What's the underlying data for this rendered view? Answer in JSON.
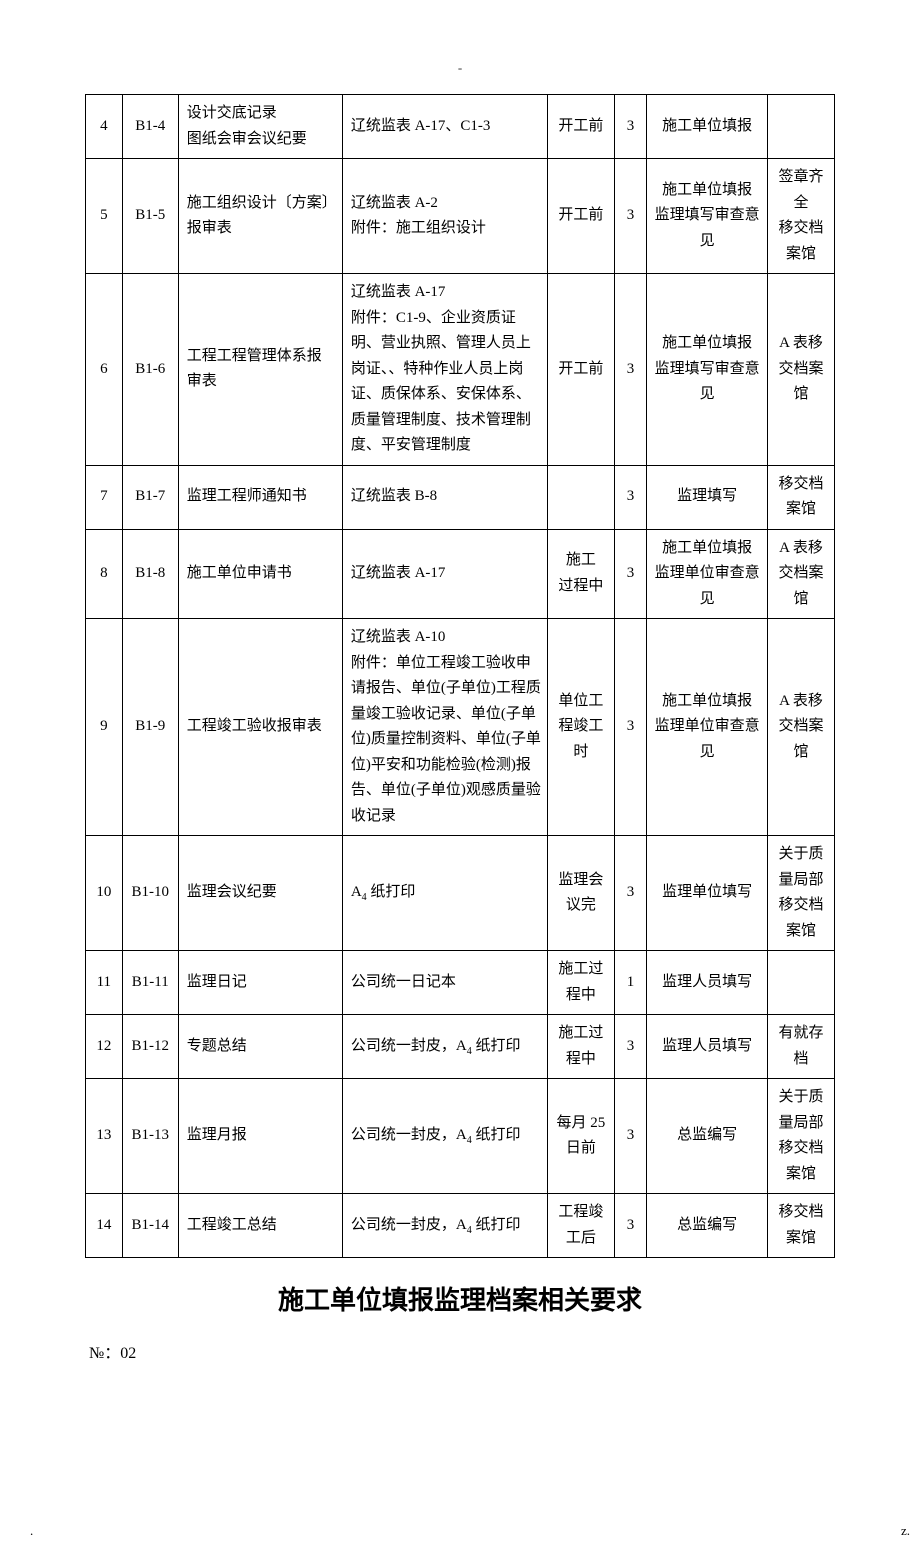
{
  "top_marker": "-",
  "table": {
    "rows": [
      {
        "idx": "4",
        "code": "B1-4",
        "name": "设计交底记录\n图纸会审会议纪要",
        "form": "辽统监表 A-17、C1-3",
        "time": "开工前",
        "count": "3",
        "resp": "施工单位填报",
        "note": ""
      },
      {
        "idx": "5",
        "code": "B1-5",
        "name": "施工组织设计〔方案〕报审表",
        "form": "辽统监表 A-2\n附件：施工组织设计",
        "time": "开工前",
        "count": "3",
        "resp": "施工单位填报\n监理填写审查意见",
        "note": "签章齐全\n移交档案馆"
      },
      {
        "idx": "6",
        "code": "B1-6",
        "name": "工程工程管理体系报审表",
        "form": "辽统监表 A-17\n附件：C1-9、企业资质证明、营业执照、管理人员上岗证、、特种作业人员上岗证、质保体系、安保体系、质量管理制度、技术管理制度、平安管理制度",
        "time": "开工前",
        "count": "3",
        "resp": "施工单位填报\n监理填写审查意见",
        "note": "A 表移交档案馆"
      },
      {
        "idx": "7",
        "code": "B1-7",
        "name": "监理工程师通知书",
        "form": "辽统监表 B-8",
        "time": "",
        "count": "3",
        "resp": "监理填写",
        "note": "移交档案馆"
      },
      {
        "idx": "8",
        "code": "B1-8",
        "name": "施工单位申请书",
        "form": "辽统监表 A-17",
        "time": "施工\n过程中",
        "count": "3",
        "resp": "施工单位填报\n监理单位审查意见",
        "note": "A 表移交档案馆"
      },
      {
        "idx": "9",
        "code": "B1-9",
        "name": "工程竣工验收报审表",
        "form": "辽统监表 A-10\n附件：单位工程竣工验收申请报告、单位(子单位)工程质量竣工验收记录、单位(子单位)质量控制资料、单位(子单位)平安和功能检验(检测)报告、单位(子单位)观感质量验收记录",
        "time": "单位工程竣工时",
        "count": "3",
        "resp": "施工单位填报\n监理单位审查意见",
        "note": "A 表移交档案馆"
      },
      {
        "idx": "10",
        "code": "B1-10",
        "name": "监理会议纪要",
        "form": "A4 纸打印",
        "time": "监理会议完",
        "count": "3",
        "resp": "监理单位填写",
        "note": "关于质量局部移交档案馆"
      },
      {
        "idx": "11",
        "code": "B1-11",
        "name": "监理日记",
        "form": "公司统一日记本",
        "time": "施工过程中",
        "count": "1",
        "resp": "监理人员填写",
        "note": ""
      },
      {
        "idx": "12",
        "code": "B1-12",
        "name": "专题总结",
        "form": "公司统一封皮，A4 纸打印",
        "time": "施工过程中",
        "count": "3",
        "resp": "监理人员填写",
        "note": "有就存档"
      },
      {
        "idx": "13",
        "code": "B1-13",
        "name": "监理月报",
        "form": "公司统一封皮，A4 纸打印",
        "time": "每月 25\n日前",
        "count": "3",
        "resp": "总监编写",
        "note": "关于质量局部移交档案馆"
      },
      {
        "idx": "14",
        "code": "B1-14",
        "name": "工程竣工总结",
        "form": "公司统一封皮，A4 纸打印",
        "time": "工程竣工后",
        "count": "3",
        "resp": "总监编写",
        "note": "移交档案馆"
      }
    ]
  },
  "heading": "施工单位填报监理档案相关要求",
  "code_line": "№：02",
  "footer_left": ".",
  "footer_right": "z."
}
